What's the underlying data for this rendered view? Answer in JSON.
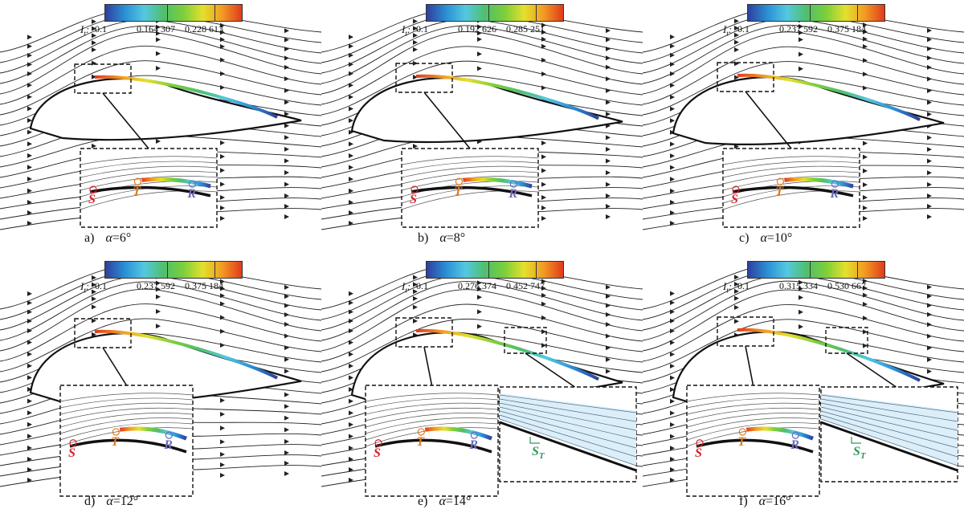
{
  "colormap_label": "I",
  "colormap_sub": "t",
  "colormap_colors": [
    "#2f3f9c",
    "#2b8fd6",
    "#54c8e0",
    "#4fbf6b",
    "#7ccf3a",
    "#e3e02e",
    "#f29a22",
    "#e03a1e"
  ],
  "marker_colors": {
    "S": "#d8202a",
    "T": "#e07a1c",
    "R": "#6a6ab8",
    "ST": "#2c9a5a"
  },
  "panels": [
    {
      "id": "a",
      "caption_letter": "a)",
      "alpha_symbol": "α",
      "alpha_value": "=6°",
      "ticks": [
        "0.1",
        "0.164 307",
        "0.228 613"
      ],
      "markers": [
        "S",
        "T",
        "R"
      ]
    },
    {
      "id": "b",
      "caption_letter": "b)",
      "alpha_symbol": "α",
      "alpha_value": "=8°",
      "ticks": [
        "0.1",
        "0.192 626",
        "0.285 251"
      ],
      "markers": [
        "S",
        "T",
        "R"
      ]
    },
    {
      "id": "c",
      "caption_letter": "c)",
      "alpha_symbol": "α",
      "alpha_value": "=10°",
      "ticks": [
        "0.1",
        "0.237 592",
        "0.375 184"
      ],
      "markers": [
        "S",
        "T",
        "R"
      ]
    },
    {
      "id": "d",
      "caption_letter": "d)",
      "alpha_symbol": "α",
      "alpha_value": "=12°",
      "ticks": [
        "0.1",
        "0.237 592",
        "0.375 184"
      ],
      "markers": [
        "S",
        "T",
        "R"
      ]
    },
    {
      "id": "e",
      "caption_letter": "e)",
      "alpha_symbol": "α",
      "alpha_value": "=14°",
      "ticks": [
        "0.1",
        "0.276 374",
        "0.452 747"
      ],
      "markers": [
        "S",
        "T",
        "R",
        "ST"
      ]
    },
    {
      "id": "f",
      "caption_letter": "f)",
      "alpha_symbol": "α",
      "alpha_value": "=16°",
      "ticks": [
        "0.1",
        "0.315 334",
        "0.530 667"
      ],
      "markers": [
        "S",
        "T",
        "R",
        "ST"
      ]
    }
  ],
  "marker_text": {
    "S": "S",
    "T": "T",
    "R": "R",
    "ST_main": "S",
    "ST_sub": "T"
  }
}
